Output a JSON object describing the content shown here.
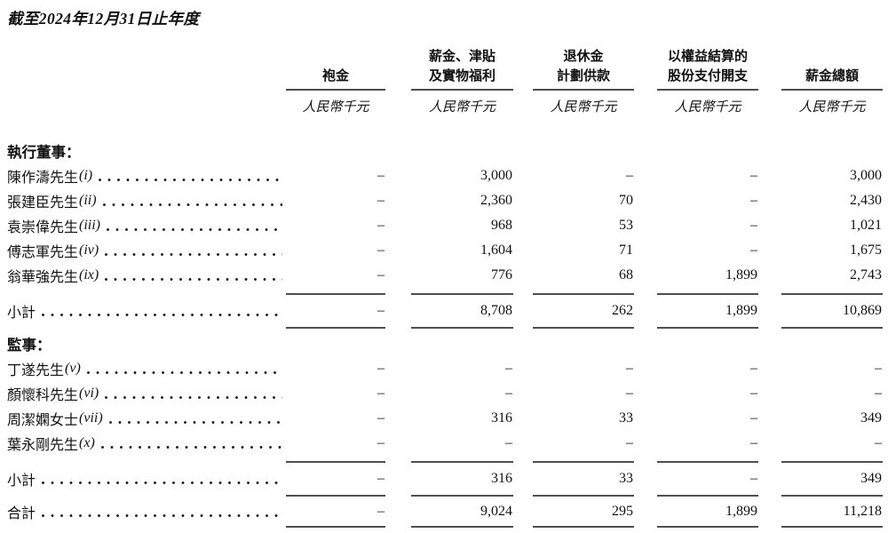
{
  "page": {
    "title": "截至2024年12月31日止年度"
  },
  "table": {
    "unit_label": "人民幣千元",
    "columns": [
      {
        "lines": [
          "袍金"
        ],
        "unit": "人民幣千元"
      },
      {
        "lines": [
          "薪金、津貼",
          "及實物福利"
        ],
        "unit": "人民幣千元"
      },
      {
        "lines": [
          "退休金",
          "計劃供款"
        ],
        "unit": "人民幣千元"
      },
      {
        "lines": [
          "以權益結算的",
          "股份支付開支"
        ],
        "unit": "人民幣千元"
      },
      {
        "lines": [
          "薪金總額"
        ],
        "unit": "人民幣千元"
      }
    ],
    "rows": [
      {
        "type": "section",
        "label": "執行董事："
      },
      {
        "type": "data",
        "name": "陳作濤先生",
        "marker": "(i)",
        "values": [
          "–",
          "3,000",
          "–",
          "–",
          "3,000"
        ]
      },
      {
        "type": "data",
        "name": "張建臣先生",
        "marker": "(ii)",
        "values": [
          "–",
          "2,360",
          "70",
          "–",
          "2,430"
        ]
      },
      {
        "type": "data",
        "name": "袁崇偉先生",
        "marker": "(iii)",
        "values": [
          "–",
          "968",
          "53",
          "–",
          "1,021"
        ]
      },
      {
        "type": "data",
        "name": "傅志軍先生",
        "marker": "(iv)",
        "values": [
          "–",
          "1,604",
          "71",
          "–",
          "1,675"
        ]
      },
      {
        "type": "data",
        "name": "翁華強先生",
        "marker": "(ix)",
        "values": [
          "–",
          "776",
          "68",
          "1,899",
          "2,743"
        ]
      },
      {
        "type": "rule"
      },
      {
        "type": "subtotal",
        "name": "小計",
        "marker": "",
        "values": [
          "–",
          "8,708",
          "262",
          "1,899",
          "10,869"
        ]
      },
      {
        "type": "rule-short"
      },
      {
        "type": "section",
        "label": "監事："
      },
      {
        "type": "data",
        "name": "丁遂先生",
        "marker": "(v)",
        "values": [
          "–",
          "–",
          "–",
          "–",
          "–"
        ]
      },
      {
        "type": "data",
        "name": "顏懷科先生",
        "marker": "(vi)",
        "values": [
          "–",
          "–",
          "–",
          "–",
          "–"
        ]
      },
      {
        "type": "data",
        "name": "周潔嫻女士",
        "marker": "(vii)",
        "values": [
          "–",
          "316",
          "33",
          "–",
          "349"
        ]
      },
      {
        "type": "data",
        "name": "葉永剛先生",
        "marker": "(x)",
        "values": [
          "–",
          "–",
          "–",
          "–",
          "–"
        ]
      },
      {
        "type": "rule"
      },
      {
        "type": "subtotal",
        "name": "小計",
        "marker": "",
        "values": [
          "–",
          "316",
          "33",
          "–",
          "349"
        ]
      },
      {
        "type": "rule-short"
      },
      {
        "type": "total",
        "name": "合計",
        "marker": "",
        "values": [
          "–",
          "9,024",
          "295",
          "1,899",
          "11,218"
        ]
      },
      {
        "type": "double-rule"
      }
    ]
  }
}
